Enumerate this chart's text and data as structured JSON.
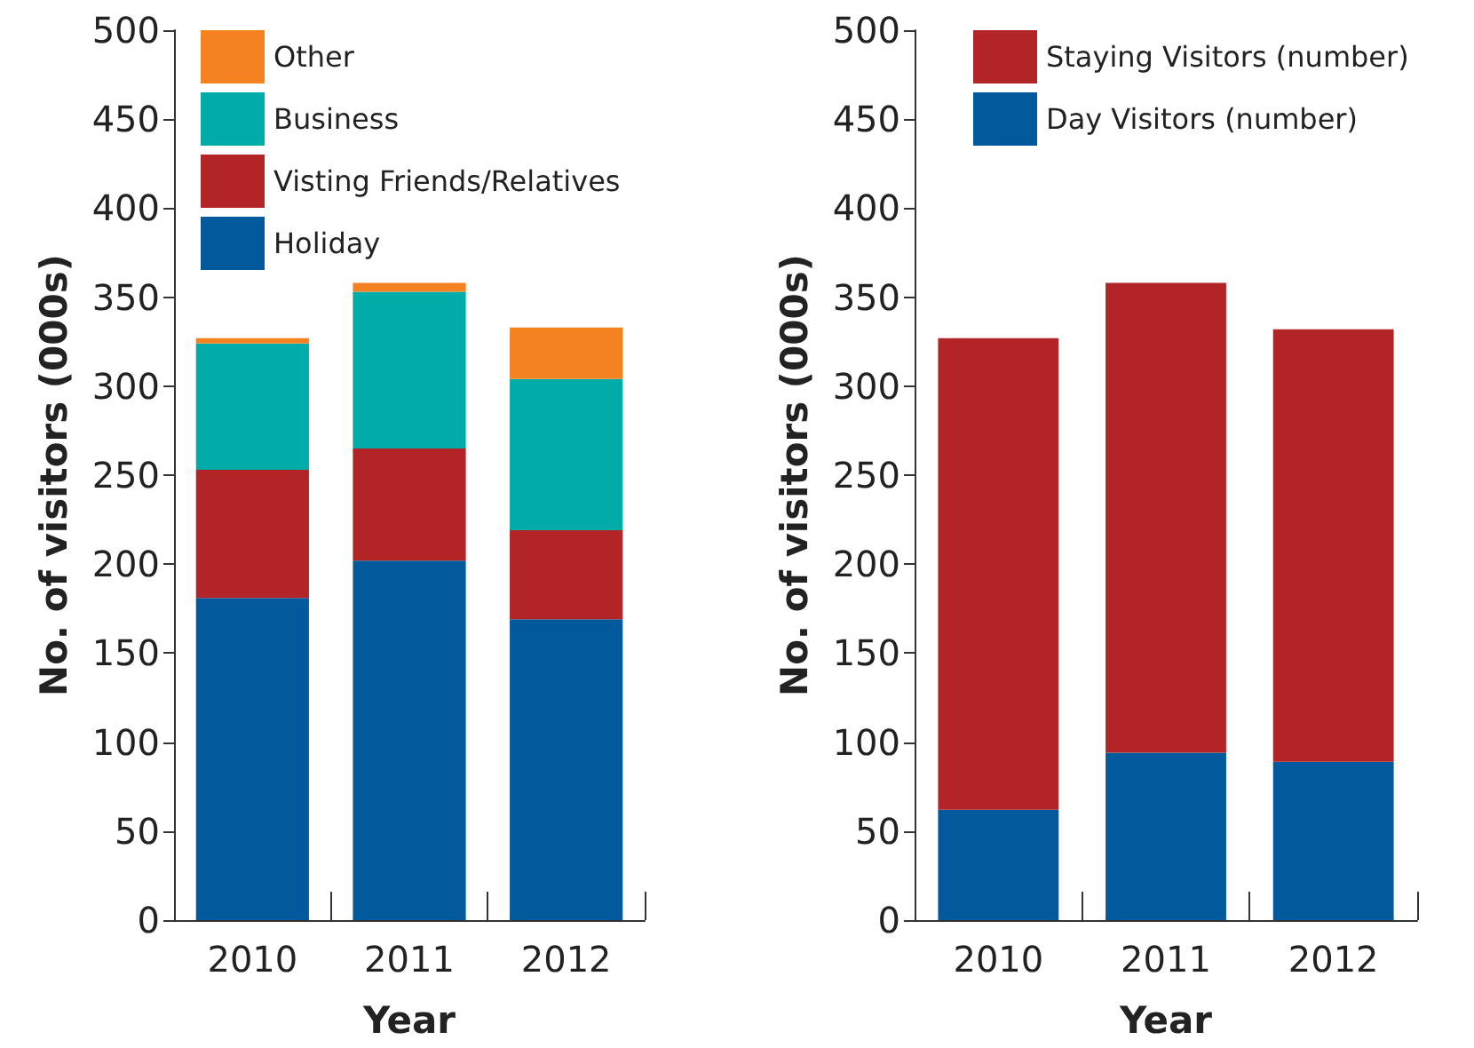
{
  "chart_data": [
    {
      "type": "bar",
      "stacked": true,
      "categories": [
        "2010",
        "2011",
        "2012"
      ],
      "xlabel": "Year",
      "ylabel": "No. of visitors (000s)",
      "ylim": [
        0,
        500
      ],
      "yticks": [
        0,
        50,
        100,
        150,
        200,
        250,
        300,
        350,
        400,
        450,
        500
      ],
      "grid": false,
      "legend": "top left",
      "series": [
        {
          "name": "Holiday",
          "color": "#02599c",
          "values": [
            181,
            202,
            169
          ]
        },
        {
          "name": "Visting Friends/Relatives",
          "color": "#b22426",
          "values": [
            72,
            63,
            50
          ]
        },
        {
          "name": "Business",
          "color": "#00aca8",
          "values": [
            71,
            88,
            85
          ]
        },
        {
          "name": "Other",
          "color": "#f58220",
          "values": [
            3,
            5,
            29
          ]
        }
      ]
    },
    {
      "type": "bar",
      "stacked": true,
      "categories": [
        "2010",
        "2011",
        "2012"
      ],
      "xlabel": "Year",
      "ylabel": "No. of visitors (000s)",
      "ylim": [
        0,
        500
      ],
      "yticks": [
        0,
        50,
        100,
        150,
        200,
        250,
        300,
        350,
        400,
        450,
        500
      ],
      "grid": false,
      "legend": "top left",
      "series": [
        {
          "name": "Day Visitors (number)",
          "color": "#02599c",
          "values": [
            62,
            94,
            89
          ]
        },
        {
          "name": "Staying Visitors (number)",
          "color": "#b22426",
          "values": [
            265,
            264,
            243
          ]
        }
      ]
    }
  ]
}
